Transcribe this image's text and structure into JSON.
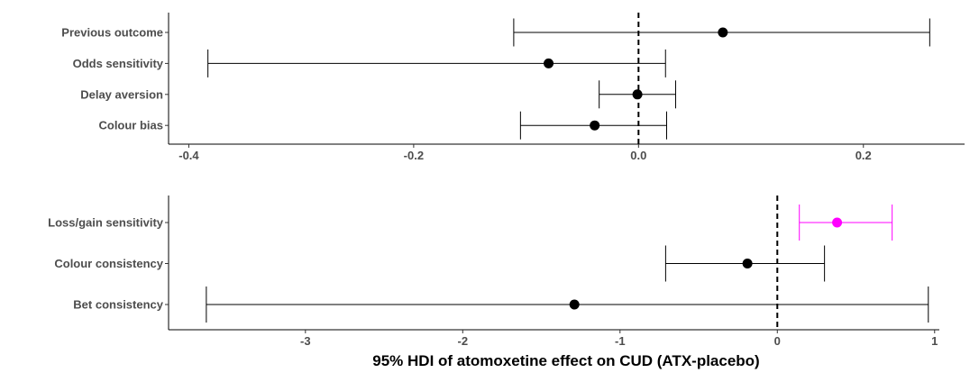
{
  "chart_data": [
    {
      "type": "forest",
      "categories": [
        "Previous outcome",
        "Odds sensitivity",
        "Delay aversion",
        "Colour bias"
      ],
      "points": [
        {
          "label": "Previous outcome",
          "estimate": 0.075,
          "lower": -0.111,
          "upper": 0.259,
          "highlight": false
        },
        {
          "label": "Odds sensitivity",
          "estimate": -0.08,
          "lower": -0.383,
          "upper": 0.024,
          "highlight": false
        },
        {
          "label": "Delay aversion",
          "estimate": -0.001,
          "lower": -0.035,
          "upper": 0.033,
          "highlight": false
        },
        {
          "label": "Colour bias",
          "estimate": -0.039,
          "lower": -0.105,
          "upper": 0.025,
          "highlight": false
        }
      ],
      "xlim": [
        -0.418,
        0.29
      ],
      "x_ticks": [
        -0.4,
        -0.2,
        0.0,
        0.2
      ],
      "x_tick_labels": [
        "-0.4",
        "-0.2",
        "0.0",
        "0.2"
      ],
      "reference_line": 0
    },
    {
      "type": "forest",
      "categories": [
        "Loss/gain sensitivity",
        "Colour consistency",
        "Bet consistency"
      ],
      "points": [
        {
          "label": "Loss/gain sensitivity",
          "estimate": 0.38,
          "lower": 0.14,
          "upper": 0.73,
          "highlight": true
        },
        {
          "label": "Colour consistency",
          "estimate": -0.19,
          "lower": -0.71,
          "upper": 0.3,
          "highlight": false
        },
        {
          "label": "Bet consistency",
          "estimate": -1.29,
          "lower": -3.63,
          "upper": 0.96,
          "highlight": false
        }
      ],
      "xlim": [
        -3.87,
        1.03
      ],
      "x_ticks": [
        -3,
        -2,
        -1,
        0,
        1
      ],
      "x_tick_labels": [
        "-3",
        "-2",
        "-1",
        "0",
        "1"
      ],
      "reference_line": 0
    }
  ],
  "xlabel": "95% HDI of atomoxetine effect on CUD (ATX-placebo)",
  "colors": {
    "default": "#000000",
    "highlight": "#ff00ff",
    "text": "#4d4d4d"
  }
}
